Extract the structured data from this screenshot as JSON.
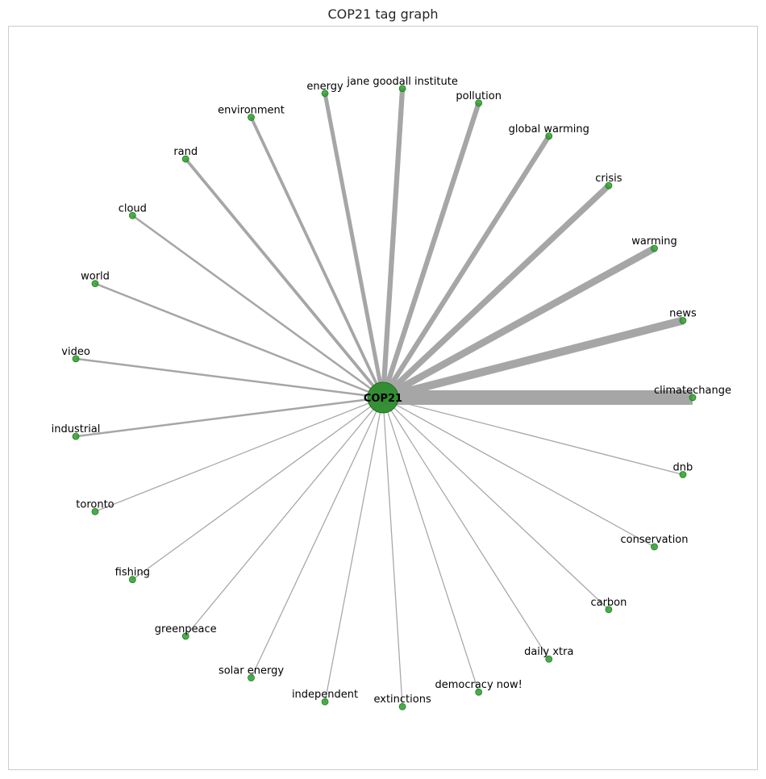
{
  "title": "COP21 tag graph",
  "colors": {
    "node": "#2ca02c",
    "edge": "#a6a6a6",
    "frame": "#cccccc"
  },
  "graph": {
    "center": "COP21",
    "nodes": [
      {
        "label": "climatechange",
        "weight": 8
      },
      {
        "label": "news",
        "weight": 8
      },
      {
        "label": "warming",
        "weight": 7
      },
      {
        "label": "crisis",
        "weight": 6
      },
      {
        "label": "global warming",
        "weight": 5
      },
      {
        "label": "pollution",
        "weight": 5
      },
      {
        "label": "jane goodall institute",
        "weight": 5
      },
      {
        "label": "energy",
        "weight": 4
      },
      {
        "label": "environment",
        "weight": 3
      },
      {
        "label": "rand",
        "weight": 3
      },
      {
        "label": "cloud",
        "weight": 2
      },
      {
        "label": "world",
        "weight": 2
      },
      {
        "label": "video",
        "weight": 2
      },
      {
        "label": "industrial",
        "weight": 2
      },
      {
        "label": "toronto",
        "weight": 1
      },
      {
        "label": "fishing",
        "weight": 1
      },
      {
        "label": "greenpeace",
        "weight": 1
      },
      {
        "label": "solar energy",
        "weight": 1
      },
      {
        "label": "independent",
        "weight": 1
      },
      {
        "label": "extinctions",
        "weight": 1
      },
      {
        "label": "democracy now!",
        "weight": 1
      },
      {
        "label": "daily xtra",
        "weight": 1
      },
      {
        "label": "carbon",
        "weight": 1
      },
      {
        "label": "conservation",
        "weight": 1
      },
      {
        "label": "dnb",
        "weight": 1
      }
    ]
  }
}
